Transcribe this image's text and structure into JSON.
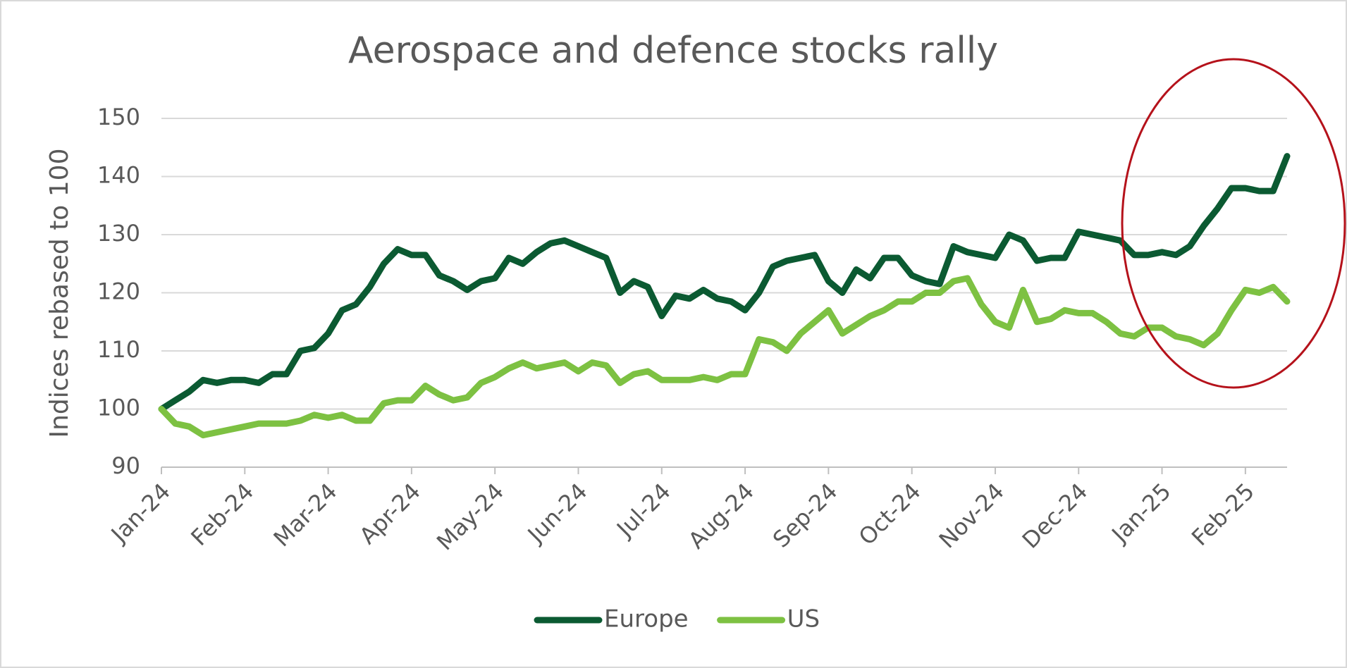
{
  "chart_data": {
    "type": "line",
    "title": "Aerospace and defence stocks rally",
    "y_label": "Indices rebased to 100",
    "categories": [
      "Jan-24",
      null,
      null,
      null,
      null,
      null,
      "Feb-24",
      null,
      null,
      null,
      null,
      null,
      "Mar-24",
      null,
      null,
      null,
      null,
      null,
      "Apr-24",
      null,
      null,
      null,
      null,
      null,
      "May-24",
      null,
      null,
      null,
      null,
      null,
      "Jun-24",
      null,
      null,
      null,
      null,
      null,
      "Jul-24",
      null,
      null,
      null,
      null,
      null,
      "Aug-24",
      null,
      null,
      null,
      null,
      null,
      "Sep-24",
      null,
      null,
      null,
      null,
      null,
      "Oct-24",
      null,
      null,
      null,
      null,
      null,
      "Nov-24",
      null,
      null,
      null,
      null,
      null,
      "Dec-24",
      null,
      null,
      null,
      null,
      null,
      "Jan-25",
      null,
      null,
      null,
      null,
      null,
      "Feb-25",
      null,
      null,
      null
    ],
    "series": [
      {
        "name": "Europe",
        "color": "#0b5a32",
        "values": [
          100,
          101.5,
          103,
          105,
          104.5,
          105,
          105,
          104.5,
          106,
          106,
          110,
          110.5,
          113,
          117,
          118,
          121,
          125,
          127.5,
          126.5,
          126.5,
          123,
          122,
          120.5,
          122,
          122.5,
          126,
          125,
          127,
          128.5,
          129,
          128,
          127,
          126,
          120,
          122,
          121,
          116,
          119.5,
          119,
          120.5,
          119,
          118.5,
          117,
          120,
          124.5,
          125.5,
          126,
          126.5,
          122,
          120,
          124,
          122.5,
          126,
          126,
          123,
          122,
          121.5,
          128,
          127,
          126.5,
          126,
          130,
          129,
          125.5,
          126,
          126,
          130.5,
          130,
          129.5,
          129,
          126.5,
          126.5,
          127,
          126.5,
          128,
          131.5,
          134.5,
          138,
          138,
          137.5,
          137.5,
          143.5
        ]
      },
      {
        "name": "US",
        "color": "#7dc142",
        "values": [
          100,
          97.5,
          97,
          95.5,
          96,
          96.5,
          97,
          97.5,
          97.5,
          97.5,
          98,
          99,
          98.5,
          99,
          98,
          98,
          101,
          101.5,
          101.5,
          104,
          102.5,
          101.5,
          102,
          104.5,
          105.5,
          107,
          108,
          107,
          107.5,
          108,
          106.5,
          108,
          107.5,
          104.5,
          106,
          106.5,
          105,
          105,
          105,
          105.5,
          105,
          106,
          106,
          112,
          111.5,
          110,
          113,
          115,
          117,
          113,
          114.5,
          116,
          117,
          118.5,
          118.5,
          120,
          120,
          122,
          122.5,
          118,
          115,
          114,
          120.5,
          115,
          115.5,
          117,
          116.5,
          116.5,
          115,
          113,
          112.5,
          114,
          114,
          112.5,
          112,
          111,
          113,
          117,
          120.5,
          120,
          121,
          118.5
        ]
      }
    ],
    "ylim": [
      90,
      150
    ],
    "yticks": [
      90,
      100,
      110,
      120,
      130,
      140,
      150
    ],
    "grid": true,
    "legend": "bottom"
  }
}
